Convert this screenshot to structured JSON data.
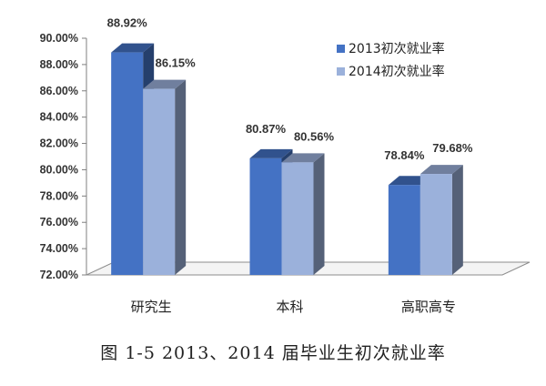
{
  "chart_data": {
    "type": "bar",
    "categories": [
      "研究生",
      "本科",
      "高职高专"
    ],
    "series": [
      {
        "name": "2013初次就业率",
        "values": [
          88.92,
          80.87,
          78.84
        ],
        "labels": [
          "88.92%",
          "80.87%",
          "78.84%"
        ],
        "color": "#4472C4"
      },
      {
        "name": "2014初次就业率",
        "values": [
          86.15,
          80.56,
          79.68
        ],
        "labels": [
          "86.15%",
          "80.56%",
          "79.68%"
        ],
        "color": "#9BB1DB"
      }
    ],
    "ylim": [
      72,
      90
    ],
    "yticks": [
      "72.00%",
      "74.00%",
      "76.00%",
      "78.00%",
      "80.00%",
      "82.00%",
      "84.00%",
      "86.00%",
      "88.00%",
      "90.00%"
    ],
    "legend_position": "top-right",
    "grid": false,
    "style": "3d-clustered-bar"
  },
  "caption": "图 1-5   2013、2014 届毕业生初次就业率"
}
